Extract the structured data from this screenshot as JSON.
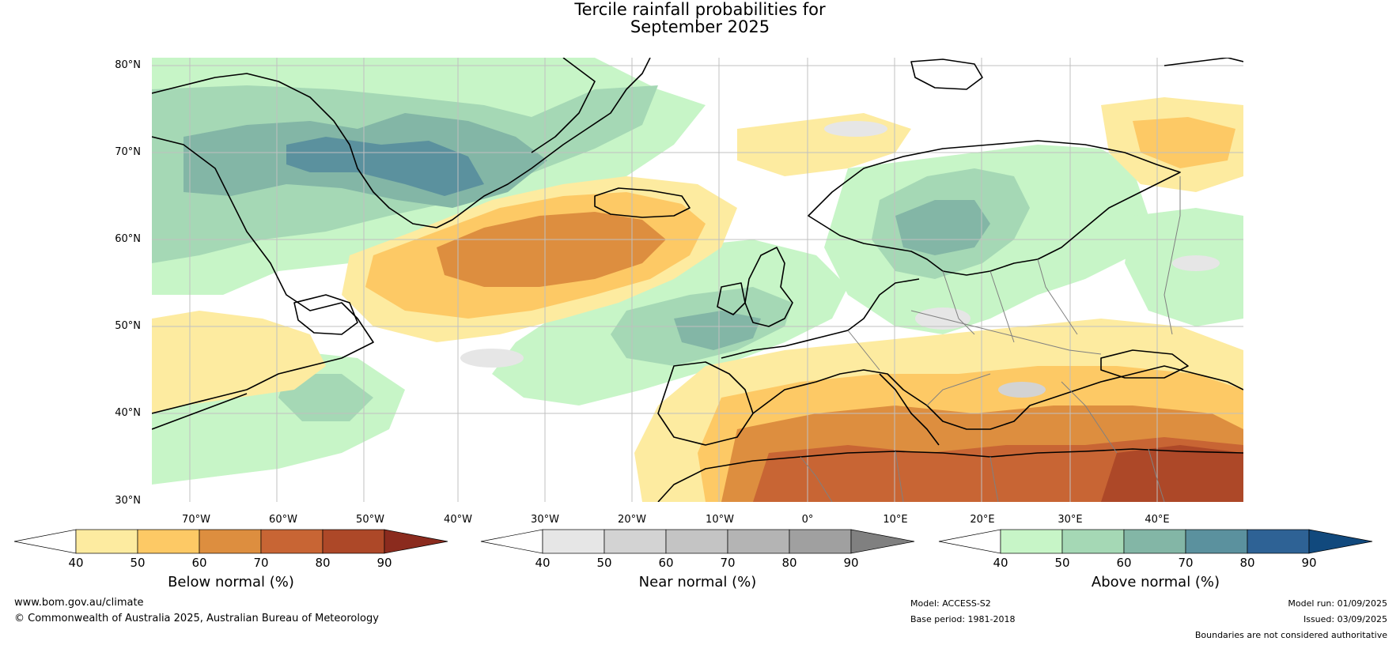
{
  "title": {
    "line1": "Tercile rainfall probabilities for",
    "line2": "September 2025"
  },
  "map": {
    "latitude_labels": [
      "80°N",
      "70°N",
      "60°N",
      "50°N",
      "40°N",
      "30°N"
    ],
    "longitude_labels": [
      "70°W",
      "60°W",
      "50°W",
      "40°W",
      "30°W",
      "20°W",
      "10°W",
      "0°",
      "10°E",
      "20°E",
      "30°E",
      "40°E"
    ],
    "grid": true,
    "region": "North Atlantic, Greenland and Europe",
    "colors": {
      "land_outline": "#000000",
      "borders": "#808080",
      "gridline": "#c0c0c0"
    }
  },
  "colorbars": [
    {
      "title": "Below normal (%)",
      "ticks": [
        "40",
        "50",
        "60",
        "70",
        "80",
        "90"
      ],
      "colors": [
        "#ffffff",
        "#fdeba0",
        "#fdc965",
        "#dd8e3f",
        "#c86534",
        "#ad4828",
        "#8b2b1e"
      ]
    },
    {
      "title": "Near normal (%)",
      "ticks": [
        "40",
        "50",
        "60",
        "70",
        "80",
        "90"
      ],
      "colors": [
        "#ffffff",
        "#e6e6e6",
        "#d3d3d3",
        "#c4c4c4",
        "#b4b4b4",
        "#a0a0a0",
        "#808080"
      ]
    },
    {
      "title": "Above normal (%)",
      "ticks": [
        "40",
        "50",
        "60",
        "70",
        "80",
        "90"
      ],
      "colors": [
        "#ffffff",
        "#c7f5c7",
        "#a5d8b5",
        "#83b6a6",
        "#5b919e",
        "#2e6295",
        "#11497d"
      ]
    }
  ],
  "footer": {
    "website": "www.bom.gov.au/climate",
    "copyright": "© Commonwealth of Australia 2025, Australian Bureau of Meteorology",
    "model": "Model: ACCESS-S2",
    "base_period": "Base period: 1981-2018",
    "model_run": "Model run: 01/09/2025",
    "issued": "Issued: 03/09/2025",
    "disclaimer": "Boundaries are not considered authoritative"
  }
}
